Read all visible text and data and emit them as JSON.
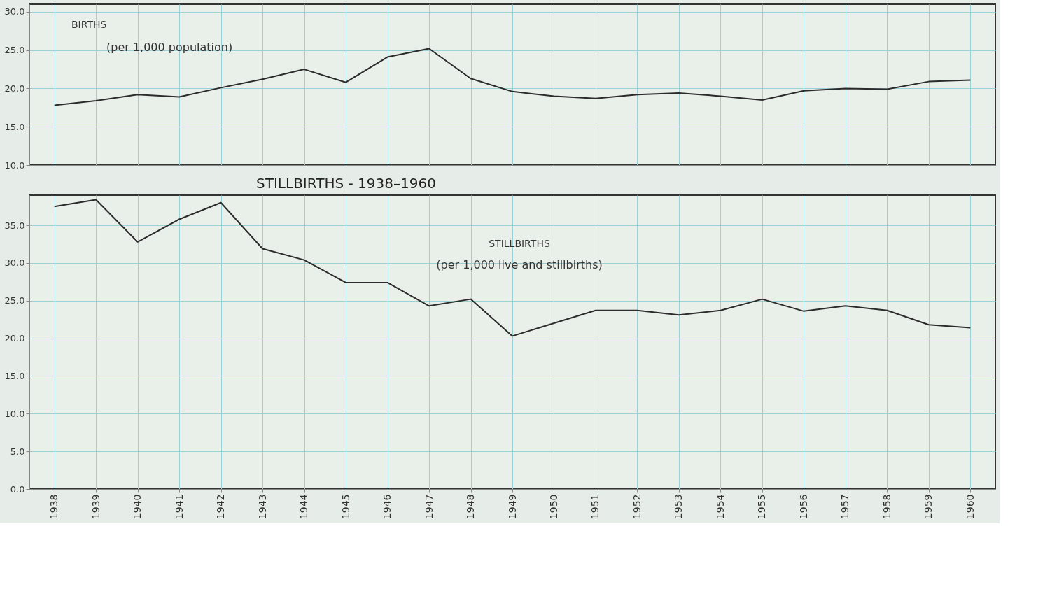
{
  "chart_data": [
    {
      "type": "line",
      "categories": [
        "1938",
        "1939",
        "1940",
        "1941",
        "1942",
        "1943",
        "1944",
        "1945",
        "1946",
        "1947",
        "1948",
        "1949",
        "1950",
        "1951",
        "1952",
        "1953",
        "1954",
        "1955",
        "1956",
        "1957",
        "1958",
        "1959",
        "1960"
      ],
      "series": [
        {
          "color": "#2b2b2b",
          "values": [
            17.8,
            18.4,
            19.2,
            18.9,
            20.1,
            21.2,
            22.5,
            20.8,
            24.1,
            25.2,
            21.3,
            19.6,
            19.0,
            18.7,
            19.2,
            19.4,
            19.0,
            18.5,
            19.7,
            20.0,
            19.9,
            20.9,
            21.1
          ]
        }
      ],
      "ylim": [
        10,
        31
      ],
      "yticks": [
        {
          "value": 10,
          "label": "10.0"
        },
        {
          "value": 15,
          "label": "15.0"
        },
        {
          "value": 20,
          "label": "20.0"
        },
        {
          "value": 25,
          "label": "25.0"
        },
        {
          "value": 30,
          "label": "30.0"
        }
      ],
      "annotations": [
        "BIRTHS",
        "(per 1,000 population)"
      ],
      "grid": true,
      "tick_labels": "y",
      "marker": "none",
      "line_style": "solid"
    },
    {
      "type": "line",
      "title": "STILLBIRTHS - 1938–1960",
      "categories": [
        "1938",
        "1939",
        "1940",
        "1941",
        "1942",
        "1943",
        "1944",
        "1945",
        "1946",
        "1947",
        "1948",
        "1949",
        "1950",
        "1951",
        "1952",
        "1953",
        "1954",
        "1955",
        "1956",
        "1957",
        "1958",
        "1959",
        "1960"
      ],
      "series": [
        {
          "color": "#2b2b2b",
          "values": [
            37.5,
            38.4,
            32.8,
            35.8,
            38.0,
            31.9,
            30.4,
            27.4,
            27.4,
            24.3,
            25.2,
            20.3,
            22.0,
            23.7,
            23.7,
            23.1,
            23.7,
            25.2,
            23.6,
            24.3,
            23.7,
            21.8,
            21.4
          ]
        }
      ],
      "ylim": [
        0,
        39
      ],
      "yticks": [
        {
          "value": 0,
          "label": "0.0"
        },
        {
          "value": 5,
          "label": "5.0"
        },
        {
          "value": 10,
          "label": "10.0"
        },
        {
          "value": 15,
          "label": "15.0"
        },
        {
          "value": 20,
          "label": "20.0"
        },
        {
          "value": 25,
          "label": "25.0"
        },
        {
          "value": 30,
          "label": "30.0"
        },
        {
          "value": 35,
          "label": "35.0"
        }
      ],
      "annotations": [
        "STILLBIRTHS",
        "(per 1,000 live and stillbirths)"
      ],
      "grid": true,
      "marker": "none",
      "line_style": "solid"
    }
  ]
}
